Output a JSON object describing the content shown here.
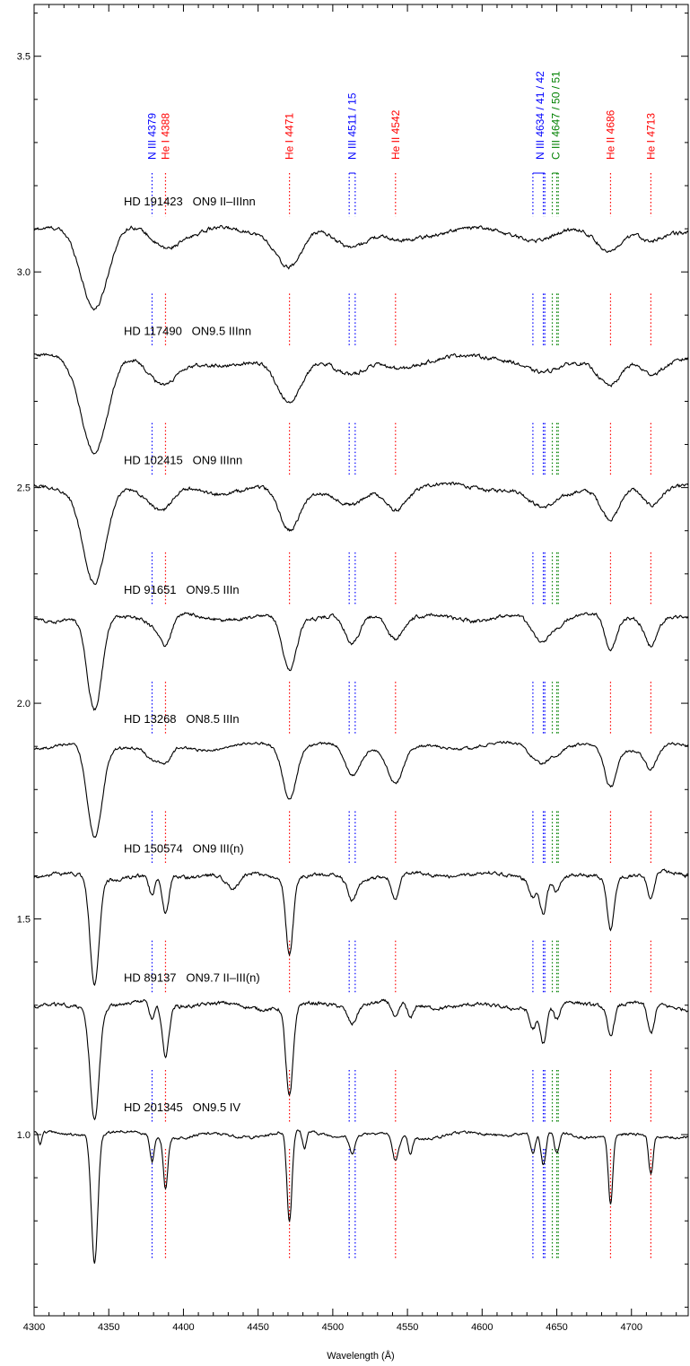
{
  "chart_data": {
    "type": "line",
    "title": "",
    "xlabel": "Wavelength (Å)",
    "ylabel": "",
    "xlim": [
      4300,
      4738
    ],
    "ylim": [
      0.58,
      3.62
    ],
    "grid": false,
    "x_ticks": [
      "4300",
      "4350",
      "4400",
      "4450",
      "4500",
      "4550",
      "4600",
      "4650",
      "4700"
    ],
    "x_tick_values": [
      4300,
      4350,
      4400,
      4450,
      4500,
      4550,
      4600,
      4650,
      4700
    ],
    "y_ticks": [
      "1.0",
      "1.5",
      "2.0",
      "2.5",
      "3.0",
      "3.5"
    ],
    "y_tick_values": [
      1.0,
      1.5,
      2.0,
      2.5,
      3.0,
      3.5
    ],
    "line_ids": [
      {
        "label": "N III 4379",
        "parts": [
          {
            "text": "N III 4379",
            "color": "#0000ff"
          }
        ],
        "color": "#0000ff",
        "waves": [
          4379
        ]
      },
      {
        "label": "He I 4388",
        "parts": [
          {
            "text": "He I 4388",
            "color": "#ff0000"
          }
        ],
        "color": "#ff0000",
        "waves": [
          4388
        ]
      },
      {
        "label": "He I 4471",
        "parts": [
          {
            "text": "He I 4471",
            "color": "#ff0000"
          }
        ],
        "color": "#ff0000",
        "waves": [
          4471
        ]
      },
      {
        "label": "N III 4511 / 15",
        "parts": [
          {
            "text": "N III 4511 / 15",
            "color": "#0000ff"
          }
        ],
        "color": "#0000ff",
        "waves": [
          4511,
          4515
        ]
      },
      {
        "label": "He II 4542",
        "parts": [
          {
            "text": "He II 4542",
            "color": "#ff0000"
          }
        ],
        "color": "#ff0000",
        "waves": [
          4542
        ]
      },
      {
        "label": "N III 4634 / 41 / 42",
        "parts": [
          {
            "text": "N III ",
            "color": "#0000ff"
          },
          {
            "text": "4634 / 41 / 42",
            "color": "#0000ff"
          }
        ],
        "color": "#0000ff",
        "waves": [
          4634,
          4641,
          4642
        ]
      },
      {
        "label": "C III 4647 / 50 / 51",
        "parts": [
          {
            "text": "C III 4647 / 50 / 51",
            "color": "#008000"
          }
        ],
        "color": "#008000",
        "waves": [
          4647,
          4650,
          4651
        ]
      },
      {
        "label": "He II 4686",
        "parts": [
          {
            "text": "He II 4686",
            "color": "#ff0000"
          }
        ],
        "color": "#ff0000",
        "waves": [
          4686
        ]
      },
      {
        "label": "He I 4713",
        "parts": [
          {
            "text": "He I 4713",
            "color": "#ff0000"
          }
        ],
        "color": "#ff0000",
        "waves": [
          4713
        ]
      }
    ],
    "series": [
      {
        "name": "HD 191423   ON9 II–IIInn",
        "continuum": 3.1,
        "broadening": 1.5,
        "noise": 0.008,
        "lines": [
          [
            4340.5,
            0.18,
            7
          ],
          [
            4379,
            0.015,
            6
          ],
          [
            4388,
            0.03,
            6
          ],
          [
            4471,
            0.09,
            7
          ],
          [
            4513,
            0.04,
            9
          ],
          [
            4542,
            0.025,
            8
          ],
          [
            4640,
            0.03,
            10
          ],
          [
            4686,
            0.05,
            7
          ],
          [
            4713,
            0.03,
            6
          ],
          [
            4400,
            0.015,
            8
          ],
          [
            4555,
            0.01,
            10
          ]
        ]
      },
      {
        "name": "HD 117490   ON9.5 IIInn",
        "continuum": 2.8,
        "broadening": 1.5,
        "noise": 0.008,
        "lines": [
          [
            4340.5,
            0.22,
            7
          ],
          [
            4379,
            0.015,
            6
          ],
          [
            4388,
            0.04,
            7
          ],
          [
            4471,
            0.11,
            7
          ],
          [
            4513,
            0.035,
            8
          ],
          [
            4542,
            0.02,
            8
          ],
          [
            4640,
            0.04,
            9
          ],
          [
            4686,
            0.06,
            6
          ],
          [
            4713,
            0.035,
            6
          ],
          [
            4420,
            0.02,
            12
          ]
        ]
      },
      {
        "name": "HD 102415   ON9 IIInn",
        "continuum": 2.5,
        "broadening": 1.4,
        "noise": 0.008,
        "lines": [
          [
            4340.5,
            0.22,
            6.5
          ],
          [
            4379,
            0.02,
            5
          ],
          [
            4388,
            0.04,
            5
          ],
          [
            4471,
            0.1,
            6
          ],
          [
            4513,
            0.04,
            8
          ],
          [
            4542,
            0.05,
            6
          ],
          [
            4640,
            0.045,
            8
          ],
          [
            4686,
            0.08,
            5.5
          ],
          [
            4713,
            0.04,
            5
          ],
          [
            4418,
            0.02,
            10
          ]
        ]
      },
      {
        "name": "HD 91651   ON9.5 IIIn",
        "continuum": 2.2,
        "broadening": 1.2,
        "noise": 0.008,
        "lines": [
          [
            4340.5,
            0.22,
            5
          ],
          [
            4379,
            0.02,
            4
          ],
          [
            4388,
            0.07,
            4
          ],
          [
            4471,
            0.12,
            4.5
          ],
          [
            4513,
            0.07,
            5
          ],
          [
            4542,
            0.05,
            5
          ],
          [
            4634,
            0.03,
            4
          ],
          [
            4641,
            0.05,
            4
          ],
          [
            4650,
            0.02,
            4
          ],
          [
            4686,
            0.08,
            4
          ],
          [
            4713,
            0.06,
            4
          ]
        ]
      },
      {
        "name": "HD 13268   ON8.5 IIIn",
        "continuum": 1.9,
        "broadening": 1.2,
        "noise": 0.006,
        "lines": [
          [
            4340.5,
            0.22,
            5
          ],
          [
            4379,
            0.03,
            4
          ],
          [
            4388,
            0.04,
            4
          ],
          [
            4471,
            0.12,
            4.5
          ],
          [
            4513,
            0.07,
            5
          ],
          [
            4542,
            0.08,
            5
          ],
          [
            4634,
            0.02,
            4
          ],
          [
            4641,
            0.03,
            4
          ],
          [
            4650,
            0.015,
            4
          ],
          [
            4686,
            0.09,
            4
          ],
          [
            4713,
            0.05,
            4
          ]
        ]
      },
      {
        "name": "HD 150574   ON9 III(n)",
        "continuum": 1.6,
        "broadening": 0.9,
        "noise": 0.008,
        "lines": [
          [
            4340.5,
            0.25,
            4
          ],
          [
            4379,
            0.05,
            2.5
          ],
          [
            4388,
            0.09,
            3
          ],
          [
            4471,
            0.18,
            3.2
          ],
          [
            4513,
            0.05,
            4
          ],
          [
            4542,
            0.06,
            3.5
          ],
          [
            4634,
            0.04,
            3
          ],
          [
            4641,
            0.08,
            3
          ],
          [
            4650,
            0.035,
            3
          ],
          [
            4686,
            0.12,
            3.2
          ],
          [
            4713,
            0.06,
            3.2
          ],
          [
            4433,
            0.04,
            6
          ]
        ]
      },
      {
        "name": "HD 89137   ON9.7 II–III(n)",
        "continuum": 1.3,
        "broadening": 0.9,
        "noise": 0.008,
        "lines": [
          [
            4340.5,
            0.26,
            4
          ],
          [
            4379,
            0.04,
            2.5
          ],
          [
            4388,
            0.12,
            3
          ],
          [
            4471,
            0.21,
            3.2
          ],
          [
            4513,
            0.04,
            4
          ],
          [
            4542,
            0.04,
            3
          ],
          [
            4552,
            0.035,
            2.5
          ],
          [
            4634,
            0.05,
            3
          ],
          [
            4641,
            0.09,
            3
          ],
          [
            4650,
            0.04,
            3
          ],
          [
            4686,
            0.07,
            3
          ],
          [
            4713,
            0.07,
            3
          ]
        ]
      },
      {
        "name": "HD 201345   ON9.5 IV",
        "continuum": 1.0,
        "broadening": 0.8,
        "noise": 0.006,
        "lines": [
          [
            4340.5,
            0.3,
            3.2
          ],
          [
            4304,
            0.03,
            1.5
          ],
          [
            4379,
            0.06,
            2
          ],
          [
            4388,
            0.12,
            2.2
          ],
          [
            4471,
            0.21,
            2.5
          ],
          [
            4481,
            0.04,
            2
          ],
          [
            4513,
            0.04,
            3
          ],
          [
            4542,
            0.06,
            3
          ],
          [
            4552,
            0.04,
            2
          ],
          [
            4634,
            0.05,
            2.5
          ],
          [
            4641,
            0.08,
            2.5
          ],
          [
            4650,
            0.05,
            2.5
          ],
          [
            4686,
            0.16,
            2.2
          ],
          [
            4713,
            0.09,
            2.2
          ]
        ]
      }
    ]
  }
}
